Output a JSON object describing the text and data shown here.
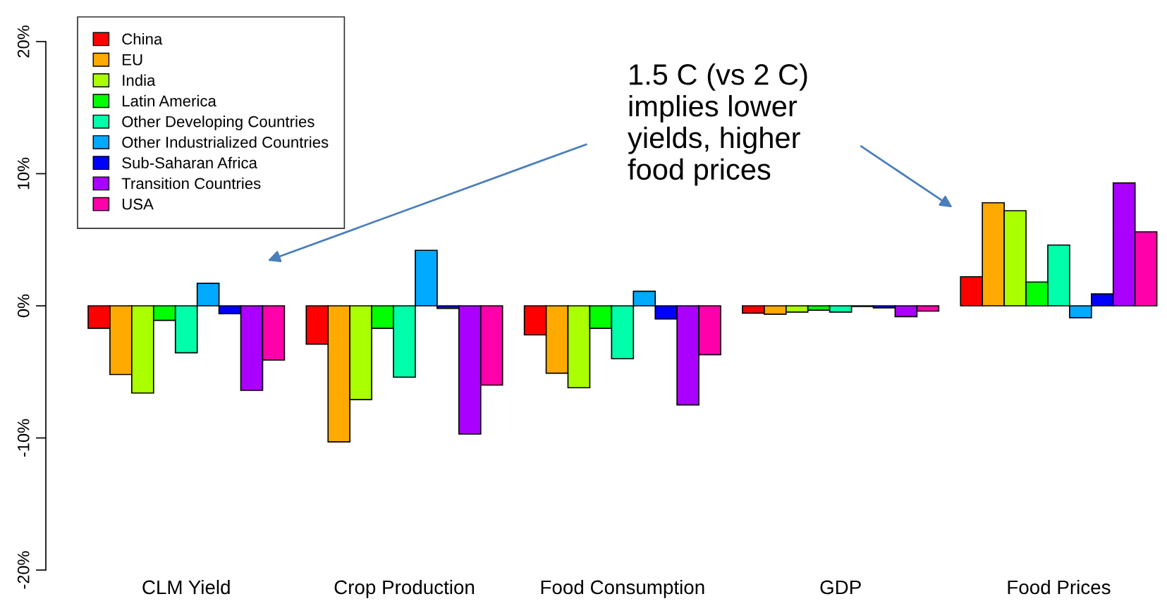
{
  "chart_data": {
    "type": "bar",
    "categories": [
      "CLM Yield",
      "Crop Production",
      "Food Consumption",
      "GDP",
      "Food Prices"
    ],
    "series": [
      {
        "name": "China",
        "color": "#ff0000",
        "values": [
          -1.7,
          -2.9,
          -2.2,
          -0.55,
          2.2
        ]
      },
      {
        "name": "EU",
        "color": "#ffaa00",
        "values": [
          -5.2,
          -10.3,
          -5.1,
          -0.63,
          7.8
        ]
      },
      {
        "name": "India",
        "color": "#aaff00",
        "values": [
          -6.6,
          -7.1,
          -6.2,
          -0.47,
          7.2
        ]
      },
      {
        "name": "Latin America",
        "color": "#00ff00",
        "values": [
          -1.1,
          -1.7,
          -1.7,
          -0.33,
          1.8
        ]
      },
      {
        "name": "Other Developing Countries",
        "color": "#00ffaa",
        "values": [
          -3.55,
          -5.4,
          -4.0,
          -0.47,
          4.6
        ]
      },
      {
        "name": "Other Industrialized Countries",
        "color": "#00aaff",
        "values": [
          1.7,
          4.2,
          1.1,
          -0.05,
          -0.9
        ]
      },
      {
        "name": "Sub-Saharan Africa",
        "color": "#0000ff",
        "values": [
          -0.6,
          -0.2,
          -1.0,
          -0.15,
          0.9
        ]
      },
      {
        "name": "Transition Countries",
        "color": "#aa00ff",
        "values": [
          -6.4,
          -9.7,
          -7.5,
          -0.82,
          9.3
        ]
      },
      {
        "name": "USA",
        "color": "#ff00aa",
        "values": [
          -4.1,
          -6.0,
          -3.7,
          -0.4,
          5.6
        ]
      }
    ],
    "ylim": [
      -20,
      20
    ],
    "yticks": [
      {
        "value": -20,
        "label": "-20%"
      },
      {
        "value": -10,
        "label": "-10%"
      },
      {
        "value": 0,
        "label": "0%"
      },
      {
        "value": 10,
        "label": "10%"
      },
      {
        "value": 20,
        "label": "20%"
      }
    ],
    "annotations": [
      "1.5 C (vs 2 C)\nimplies lower\nyields, higher\nfood prices"
    ],
    "legend": "top left",
    "grid": false
  }
}
